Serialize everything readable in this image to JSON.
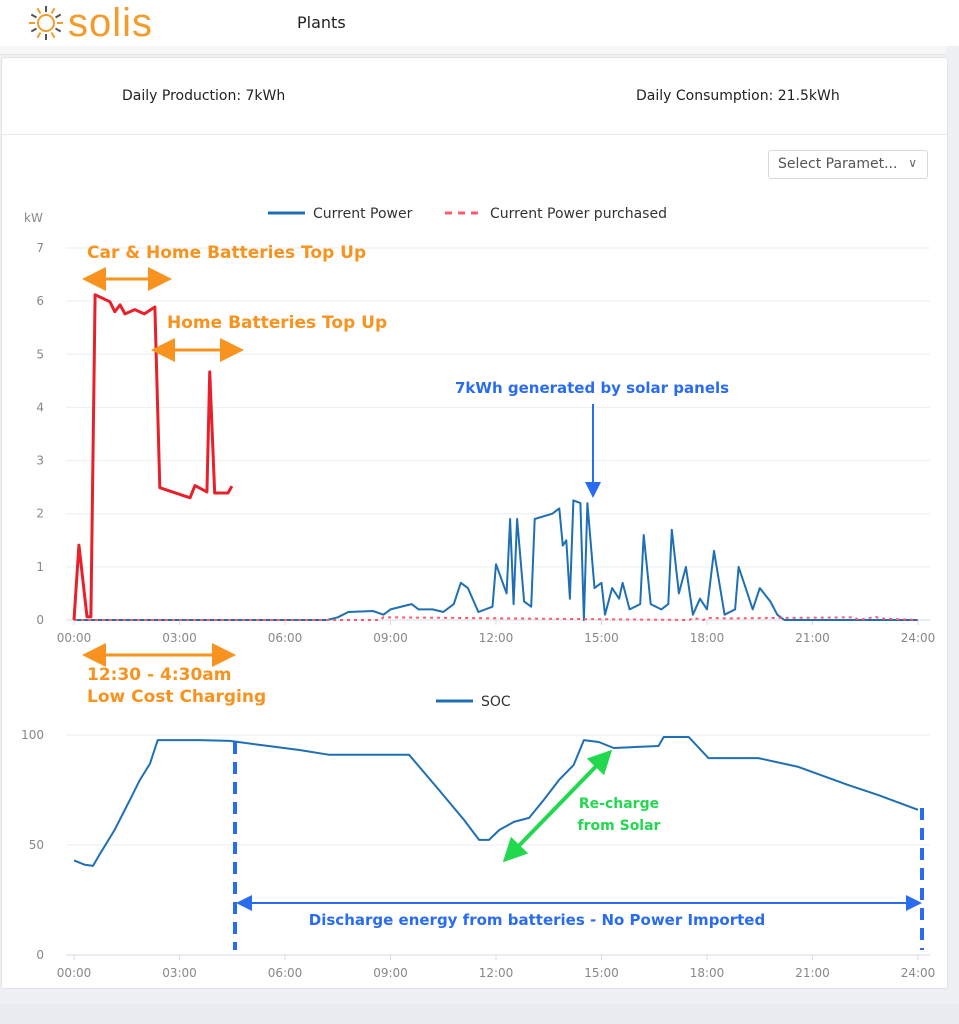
{
  "header": {
    "logo": "solis",
    "nav_item": "Plants"
  },
  "stats": {
    "production": "Daily Production: 7kWh",
    "consumption": "Daily Consumption: 21.5kWh"
  },
  "select": {
    "label": "Select Paramet...",
    "icon": "chevron-down-icon"
  },
  "colors": {
    "power": "#1f6fb4",
    "purchased": "#ff5a6e",
    "annotation_red": "#e8202a",
    "annotation_orange": "#f7931e",
    "annotation_blue": "#2a6cf0",
    "annotation_green": "#22d84f"
  },
  "chart_data": [
    {
      "type": "line",
      "ylabel": "kW",
      "ylim": [
        0,
        7
      ],
      "yticks": [
        "0",
        "1",
        "2",
        "3",
        "4",
        "5",
        "6",
        "7"
      ],
      "xlim": [
        0,
        24
      ],
      "xticks": [
        "00:00",
        "03:00",
        "06:00",
        "09:00",
        "12:00",
        "15:00",
        "18:00",
        "21:00",
        "24:00"
      ],
      "grid": true,
      "legend": "top-center",
      "series": [
        {
          "name": "Current Power",
          "style": "solid",
          "x": [
            0,
            7.2,
            7.5,
            7.8,
            8.5,
            8.8,
            9,
            9.6,
            9.8,
            10.2,
            10.5,
            10.8,
            11,
            11.2,
            11.5,
            11.9,
            12.0,
            12.3,
            12.4,
            12.5,
            12.6,
            12.8,
            13.0,
            13.1,
            13.6,
            13.8,
            13.9,
            14.0,
            14.1,
            14.2,
            14.4,
            14.5,
            14.6,
            14.8,
            15.0,
            15.1,
            15.3,
            15.5,
            15.6,
            15.8,
            16.1,
            16.2,
            16.4,
            16.7,
            16.9,
            17.0,
            17.2,
            17.4,
            17.6,
            17.8,
            18.0,
            18.2,
            18.5,
            18.8,
            18.9,
            19.1,
            19.3,
            19.5,
            19.8,
            20.0,
            20.2,
            24
          ],
          "y": [
            0,
            0,
            0.05,
            0.15,
            0.17,
            0.1,
            0.2,
            0.3,
            0.2,
            0.2,
            0.15,
            0.3,
            0.7,
            0.6,
            0.15,
            0.25,
            1.05,
            0.5,
            1.9,
            0.3,
            1.9,
            0.35,
            0.25,
            1.9,
            2.0,
            2.1,
            1.4,
            1.5,
            0.4,
            2.25,
            2.2,
            0.0,
            2.2,
            0.6,
            0.7,
            0.1,
            0.6,
            0.4,
            0.7,
            0.2,
            0.3,
            1.6,
            0.3,
            0.2,
            0.3,
            1.7,
            0.5,
            1.0,
            0.1,
            0.4,
            0.2,
            1.3,
            0.1,
            0.2,
            1.0,
            0.6,
            0.2,
            0.6,
            0.35,
            0.1,
            0,
            0
          ]
        },
        {
          "name": "Current Power purchased",
          "style": "dashed",
          "x": [
            0,
            8.7,
            8.8,
            17.5,
            17.6,
            17.9,
            18.0,
            18.6,
            22.2,
            22.3,
            22.8,
            22.9,
            24
          ],
          "y": [
            0,
            0,
            0.05,
            0,
            0.04,
            0,
            0.04,
            0.03,
            0.05,
            0,
            0.06,
            0.03,
            0
          ]
        }
      ],
      "annotation_stroke": {
        "x": [
          0,
          0.14,
          0.37,
          0.48,
          0.6,
          1.02,
          1.16,
          1.31,
          1.45,
          1.73,
          2.0,
          2.3,
          2.44,
          3.3,
          3.44,
          3.78,
          3.86,
          4.0,
          4.38,
          4.49
        ],
        "y": [
          0,
          1.41,
          0.06,
          0.06,
          6.12,
          5.99,
          5.8,
          5.93,
          5.76,
          5.84,
          5.76,
          5.89,
          2.49,
          2.3,
          2.53,
          2.41,
          4.67,
          2.39,
          2.39,
          2.52
        ]
      },
      "annotations": {
        "car_home": "Car & Home Batteries Top Up",
        "home": "Home Batteries Top Up",
        "solar": "7kWh generated by solar panels",
        "low_cost_1": "12:30 - 4:30am",
        "low_cost_2": "Low Cost Charging"
      }
    },
    {
      "type": "line",
      "ylim": [
        0,
        100
      ],
      "yticks": [
        "0",
        "50",
        "100"
      ],
      "xlim": [
        0,
        24
      ],
      "xticks": [
        "00:00",
        "03:00",
        "06:00",
        "09:00",
        "12:00",
        "15:00",
        "18:00",
        "21:00",
        "24:00"
      ],
      "grid": true,
      "legend": "top-center",
      "series": [
        {
          "name": "SOC",
          "x": [
            0,
            0.31,
            0.54,
            0.74,
            1.16,
            1.59,
            1.87,
            2.16,
            2.38,
            3.57,
            4.43,
            5.28,
            6.41,
            7.26,
            9.53,
            10.38,
            11.09,
            11.52,
            11.8,
            12.09,
            12.51,
            12.94,
            13.36,
            13.79,
            14.21,
            14.5,
            14.92,
            15.35,
            16.62,
            16.77,
            17.48,
            18.04,
            19.46,
            20.6,
            22.01,
            22.87,
            24
          ],
          "y": [
            43,
            41,
            40.5,
            46,
            57,
            70.5,
            79.5,
            87,
            97.7,
            97.7,
            97.3,
            95.5,
            93.2,
            91,
            91,
            75,
            61.4,
            52.3,
            52.3,
            56.8,
            60.5,
            62.3,
            70.5,
            79.5,
            86.4,
            97.7,
            96.8,
            94.1,
            95,
            99.1,
            99.1,
            89.5,
            89.5,
            85.5,
            77.3,
            72.7,
            66
          ]
        }
      ],
      "annotations": {
        "recharge_1": "Re-charge",
        "recharge_2": "from Solar",
        "discharge": "Discharge energy from batteries - No Power Imported"
      }
    }
  ]
}
